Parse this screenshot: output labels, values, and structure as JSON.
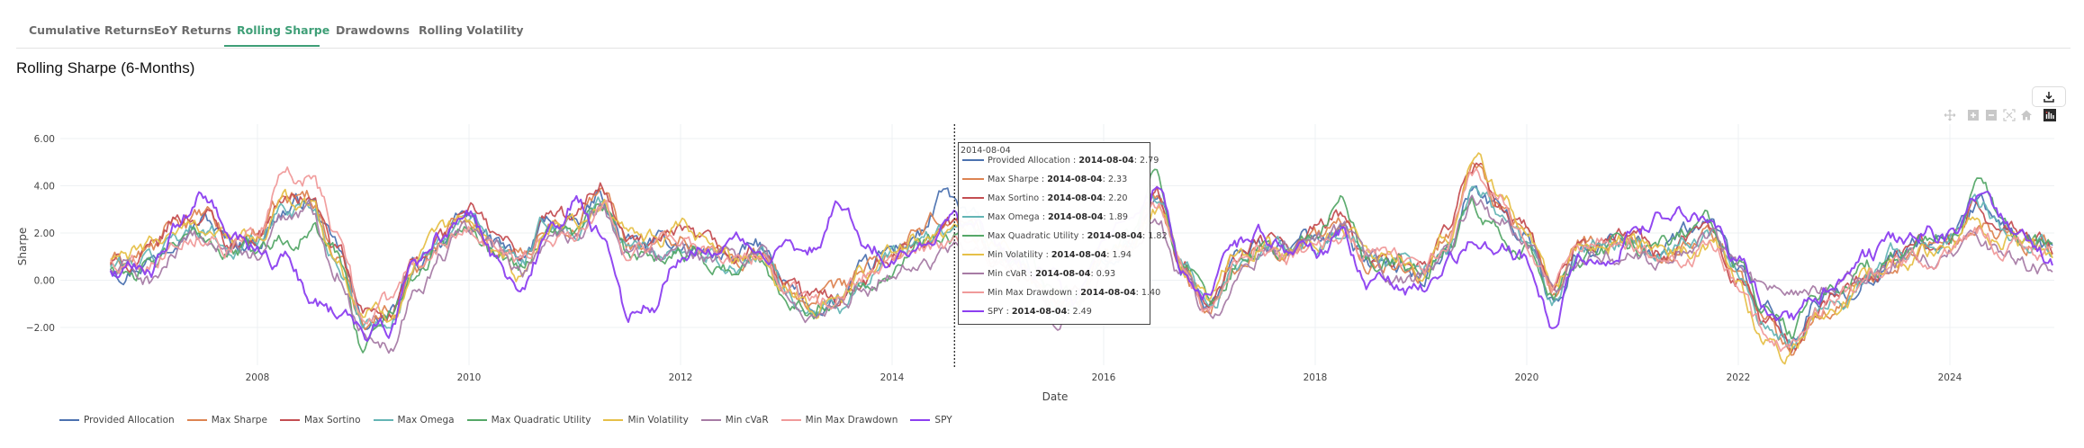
{
  "tabs": [
    {
      "label": "Cumulative Returns",
      "active": false
    },
    {
      "label": "EoY Returns",
      "active": false
    },
    {
      "label": "Rolling Sharpe",
      "active": true
    },
    {
      "label": "Drawdowns",
      "active": false
    },
    {
      "label": "Rolling Volatility",
      "active": false
    }
  ],
  "page_title": "Rolling Sharpe (6-Months)",
  "toolbar": {
    "download_icon": "download-icon",
    "modebar_icons": [
      "pan-icon",
      "zoom-in-icon",
      "zoom-out-icon",
      "autoscale-icon",
      "home-icon",
      "plotly-logo-icon"
    ]
  },
  "hover": {
    "date": "2014-08-04",
    "x": 2014.59,
    "rows": [
      {
        "name": "Provided Allocation",
        "sep": " : ",
        "date": "2014-08-04",
        "value": ": 2.79"
      },
      {
        "name": "Max Sharpe",
        "sep": " : ",
        "date": "2014-08-04",
        "value": ": 2.33"
      },
      {
        "name": "Max Sortino",
        "sep": " : ",
        "date": "2014-08-04",
        "value": ": 2.20"
      },
      {
        "name": "Max Omega",
        "sep": " : ",
        "date": "2014-08-04",
        "value": ": 1.89"
      },
      {
        "name": "Max Quadratic Utility",
        "sep": " : ",
        "date": "2014-08-04",
        "value": ": 1.82"
      },
      {
        "name": "Min Volatility",
        "sep": " : ",
        "date": "2014-08-04",
        "value": ": 1.94"
      },
      {
        "name": "Min cVaR",
        "sep": " : ",
        "date": "2014-08-04",
        "value": ": 0.93"
      },
      {
        "name": "Min Max Drawdown",
        "sep": " : ",
        "date": "2014-08-04",
        "value": ": 1.40"
      },
      {
        "name": "SPY",
        "sep": " : ",
        "date": "2014-08-04",
        "value": ": 2.49"
      }
    ]
  },
  "chart_data": {
    "type": "line",
    "title": "Rolling Sharpe (6-Months)",
    "xlabel": "Date",
    "ylabel": "Sharpe",
    "xlim": [
      2006.61,
      2024.97
    ],
    "ylim": [
      -3.6,
      6.6
    ],
    "x_ticks": [
      2008,
      2010,
      2012,
      2014,
      2016,
      2018,
      2020,
      2022,
      2024
    ],
    "x_tick_labels": [
      "2008",
      "2010",
      "2012",
      "2014",
      "2016",
      "2018",
      "2020",
      "2022",
      "2024"
    ],
    "y_ticks": [
      -2,
      0,
      2,
      4,
      6
    ],
    "y_tick_labels": [
      "−2.00",
      "0.00",
      "2.00",
      "4.00",
      "6.00"
    ],
    "grid": true,
    "legend_position": "bottom",
    "x_start": 2006.75,
    "x_step": 0.25,
    "series": [
      {
        "name": "Provided Allocation",
        "color": "#4c72b0",
        "values": [
          0.6,
          1.0,
          2.3,
          2.6,
          1.5,
          1.8,
          3.0,
          3.4,
          1.2,
          -1.8,
          -1.5,
          0.5,
          1.8,
          2.6,
          1.5,
          0.8,
          2.5,
          2.2,
          3.5,
          1.5,
          1.4,
          1.6,
          1.2,
          1.0,
          1.4,
          -0.5,
          -1.2,
          -0.8,
          0.3,
          1.2,
          2.0,
          3.5,
          2.5,
          1.0,
          0.6,
          -1.2,
          -0.8,
          1.0,
          1.6,
          3.6,
          0.5,
          -1.0,
          0.8,
          1.6,
          1.4,
          1.8,
          2.5,
          0.8,
          0.6,
          0.2,
          1.5,
          3.8,
          3.0,
          1.8,
          -0.8,
          1.2,
          1.6,
          2.0,
          1.2,
          1.8,
          2.2,
          0.5,
          -1.5,
          -2.6,
          -1.0,
          -0.5,
          0.4,
          1.2,
          1.5,
          1.8,
          3.2,
          2.2,
          1.6,
          1.2
        ]
      },
      {
        "name": "Max Sharpe",
        "color": "#dd8452",
        "values": [
          0.8,
          1.2,
          2.5,
          2.6,
          1.7,
          2.0,
          3.3,
          3.6,
          1.0,
          -1.6,
          -1.3,
          0.6,
          1.8,
          2.9,
          1.6,
          0.9,
          2.6,
          2.4,
          3.9,
          1.6,
          1.5,
          1.8,
          1.4,
          0.9,
          1.2,
          -0.4,
          -1.0,
          -0.7,
          0.4,
          1.0,
          1.8,
          2.6,
          2.3,
          1.0,
          0.4,
          -1.3,
          -0.9,
          1.0,
          1.5,
          3.4,
          0.4,
          -1.2,
          0.7,
          1.5,
          1.3,
          1.7,
          2.3,
          1.0,
          0.7,
          0.3,
          1.8,
          5.0,
          3.4,
          2.0,
          -0.6,
          1.3,
          1.6,
          1.9,
          1.0,
          1.6,
          2.0,
          0.2,
          -1.8,
          -2.9,
          -1.2,
          -0.7,
          0.2,
          1.0,
          1.3,
          1.6,
          2.8,
          2.0,
          1.7,
          1.3
        ]
      },
      {
        "name": "Max Sortino",
        "color": "#c44e52",
        "values": [
          0.7,
          1.1,
          2.6,
          2.8,
          1.6,
          2.0,
          3.4,
          3.5,
          1.1,
          -1.5,
          -1.2,
          0.5,
          1.8,
          3.0,
          1.8,
          1.0,
          2.7,
          2.5,
          4.2,
          1.7,
          1.4,
          1.7,
          1.3,
          0.8,
          1.3,
          -0.3,
          -0.9,
          -0.6,
          0.4,
          1.0,
          1.7,
          2.5,
          2.2,
          1.0,
          0.5,
          -1.2,
          -0.9,
          1.1,
          1.6,
          3.5,
          0.5,
          -1.1,
          0.8,
          1.6,
          1.4,
          1.8,
          2.6,
          1.0,
          0.8,
          0.3,
          1.7,
          4.8,
          3.3,
          2.1,
          -0.5,
          1.4,
          1.7,
          2.0,
          1.1,
          1.5,
          1.9,
          0.3,
          -1.7,
          -2.8,
          -1.1,
          -0.6,
          0.3,
          1.1,
          1.4,
          1.7,
          3.0,
          2.1,
          1.8,
          1.4
        ]
      },
      {
        "name": "Max Omega",
        "color": "#64b5b5",
        "values": [
          0.6,
          0.9,
          2.0,
          2.3,
          1.4,
          1.7,
          3.1,
          3.2,
          1.0,
          -1.7,
          -1.6,
          0.3,
          1.6,
          2.5,
          1.4,
          0.8,
          2.3,
          2.1,
          3.2,
          1.4,
          1.3,
          1.5,
          1.1,
          0.7,
          1.1,
          -0.6,
          -1.5,
          -1.0,
          0.2,
          0.9,
          1.6,
          2.0,
          2.0,
          0.9,
          0.5,
          -1.1,
          -1.0,
          0.9,
          1.5,
          3.5,
          0.4,
          -1.1,
          0.7,
          1.4,
          1.3,
          1.6,
          2.2,
          0.9,
          0.6,
          0.2,
          1.4,
          4.0,
          2.9,
          1.8,
          -0.7,
          1.2,
          1.5,
          1.8,
          1.1,
          1.6,
          1.9,
          0.3,
          -1.6,
          -2.5,
          -1.3,
          -0.6,
          0.3,
          1.1,
          1.4,
          1.7,
          3.3,
          2.3,
          1.6,
          1.2
        ]
      },
      {
        "name": "Max Quadratic Utility",
        "color": "#55a868",
        "values": [
          0.5,
          0.4,
          1.5,
          1.9,
          1.2,
          1.3,
          1.8,
          2.2,
          1.0,
          -2.6,
          -1.4,
          0.4,
          1.7,
          2.8,
          1.3,
          0.7,
          2.3,
          2.0,
          3.0,
          1.0,
          1.2,
          1.3,
          0.9,
          0.5,
          0.9,
          -0.5,
          -1.0,
          -0.6,
          0.1,
          0.8,
          1.5,
          2.2,
          1.8,
          0.9,
          0.5,
          -0.7,
          -0.8,
          1.1,
          1.7,
          4.4,
          0.7,
          -0.9,
          0.6,
          1.2,
          1.2,
          1.7,
          3.4,
          0.7,
          0.8,
          0.1,
          1.3,
          3.1,
          2.2,
          1.4,
          -1.0,
          0.9,
          1.3,
          1.6,
          1.5,
          2.0,
          2.4,
          0.7,
          -1.3,
          -2.3,
          -0.8,
          -0.3,
          0.6,
          1.4,
          1.7,
          1.9,
          3.8,
          2.5,
          1.7,
          1.3
        ]
      },
      {
        "name": "Min Volatility",
        "color": "#e6c048",
        "values": [
          0.9,
          1.4,
          2.2,
          2.3,
          1.8,
          1.6,
          3.2,
          3.4,
          0.8,
          -1.3,
          -1.5,
          0.7,
          1.7,
          2.5,
          1.2,
          0.3,
          2.5,
          2.3,
          3.3,
          1.8,
          1.7,
          1.9,
          1.5,
          1.0,
          1.2,
          -0.2,
          -1.1,
          -0.6,
          0.5,
          1.1,
          1.8,
          2.3,
          1.9,
          1.2,
          0.6,
          -1.0,
          -0.6,
          1.2,
          1.3,
          3.0,
          0.6,
          -0.8,
          0.9,
          1.5,
          1.2,
          1.5,
          2.0,
          1.2,
          0.9,
          0.4,
          2.0,
          5.5,
          3.6,
          2.2,
          -0.3,
          1.4,
          1.5,
          1.7,
          0.8,
          1.3,
          1.6,
          -0.2,
          -2.2,
          -3.1,
          -1.5,
          -0.9,
          0.0,
          0.8,
          1.1,
          1.2,
          2.5,
          1.7,
          1.6,
          1.4
        ]
      },
      {
        "name": "Min cVaR",
        "color": "#a77ba5",
        "values": [
          0.4,
          0.0,
          1.2,
          1.5,
          1.3,
          1.0,
          2.5,
          2.9,
          0.6,
          -2.1,
          -2.5,
          -0.3,
          1.1,
          2.2,
          1.3,
          0.6,
          1.8,
          1.6,
          2.8,
          1.2,
          1.0,
          1.1,
          1.0,
          0.6,
          0.9,
          -0.8,
          -1.6,
          -1.3,
          -0.1,
          0.6,
          1.0,
          0.9,
          1.3,
          0.6,
          0.1,
          -1.6,
          -1.1,
          0.6,
          1.1,
          2.8,
          0.2,
          -1.6,
          0.3,
          1.1,
          1.1,
          1.3,
          1.8,
          0.6,
          0.3,
          0.0,
          1.1,
          3.3,
          2.5,
          1.2,
          -0.6,
          0.9,
          1.1,
          1.0,
          0.6,
          1.4,
          1.7,
          0.7,
          -0.6,
          -0.9,
          -0.4,
          0.0,
          0.5,
          0.8,
          1.0,
          1.0,
          1.6,
          1.0,
          0.6,
          0.4
        ]
      },
      {
        "name": "Min Max Drawdown",
        "color": "#f09a9a",
        "values": [
          0.8,
          1.0,
          1.9,
          2.1,
          1.7,
          1.9,
          4.2,
          4.5,
          2.0,
          -1.2,
          -1.0,
          0.8,
          1.5,
          2.6,
          1.5,
          0.9,
          2.0,
          2.2,
          3.3,
          1.7,
          1.5,
          1.6,
          1.3,
          0.9,
          1.2,
          -0.4,
          -1.1,
          -0.9,
          0.2,
          0.8,
          1.2,
          1.4,
          1.6,
          0.8,
          0.3,
          -1.4,
          -1.1,
          0.9,
          1.3,
          3.2,
          0.4,
          -1.3,
          0.5,
          1.3,
          1.2,
          1.5,
          2.0,
          1.3,
          1.0,
          0.3,
          1.6,
          4.5,
          3.2,
          1.7,
          -0.3,
          1.6,
          1.8,
          1.5,
          0.8,
          1.2,
          1.5,
          0.0,
          -1.9,
          -2.7,
          -1.3,
          -0.7,
          0.1,
          0.9,
          1.1,
          1.3,
          2.2,
          1.4,
          1.3,
          0.9
        ]
      },
      {
        "name": "SPY",
        "color": "#8c3ff0",
        "values": [
          0.3,
          0.6,
          2.2,
          3.6,
          1.6,
          1.2,
          0.8,
          -0.6,
          -1.2,
          -2.4,
          -2.0,
          0.9,
          2.0,
          2.5,
          0.8,
          -0.2,
          1.8,
          3.2,
          1.8,
          -1.5,
          -0.9,
          1.2,
          1.6,
          1.5,
          1.2,
          1.3,
          1.4,
          3.5,
          1.9,
          1.2,
          1.4,
          2.5,
          2.4,
          1.2,
          0.7,
          0.2,
          -1.0,
          1.8,
          2.8,
          3.9,
          0.8,
          -0.4,
          1.5,
          2.0,
          1.1,
          1.0,
          1.8,
          -0.1,
          0.2,
          -0.5,
          0.9,
          1.7,
          1.4,
          0.9,
          -1.8,
          0.8,
          1.1,
          1.9,
          2.5,
          2.9,
          2.4,
          0.8,
          -0.8,
          -1.6,
          -0.3,
          0.5,
          1.0,
          1.5,
          2.1,
          1.9,
          3.6,
          2.7,
          1.5,
          1.0
        ]
      }
    ]
  }
}
